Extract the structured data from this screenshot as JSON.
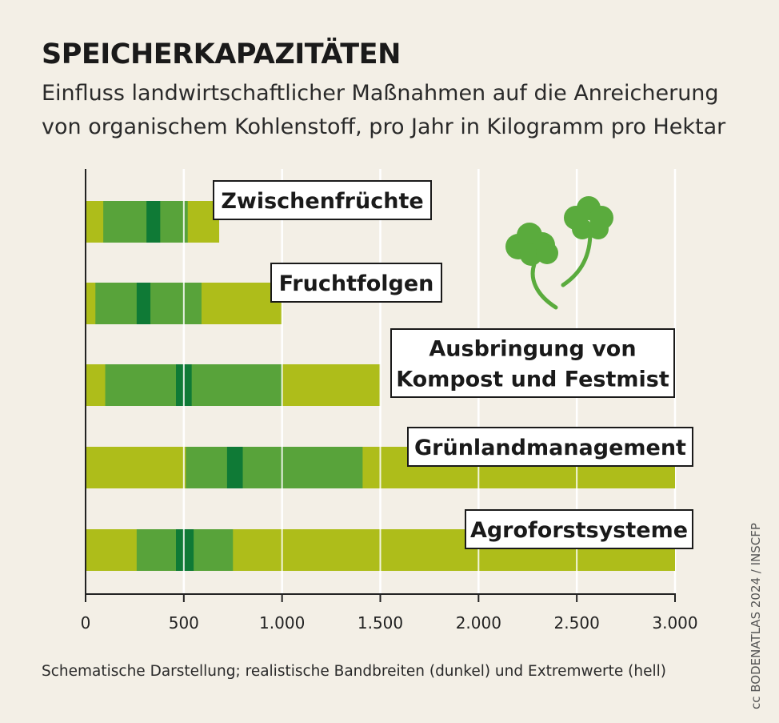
{
  "header": {
    "title": "SPEICHERKAPAZITÄTEN",
    "subtitle_line1": "Einfluss landwirtschaftlicher Maßnahmen auf die Anreicherung",
    "subtitle_line2": "von organischem Kohlenstoff, pro Jahr in Kilogramm pro Hektar"
  },
  "footnote": "Schematische Darstellung; realistische Bandbreiten (dunkel) und Extremwerte (hell)",
  "credit": "cc BODENATLAS 2024 / INSCFP",
  "colors": {
    "extreme": "#aebd1a",
    "range": "#58a33a",
    "core": "#0f7a36",
    "axis": "#222222",
    "grid": "#ffffff",
    "clover": "#5aab3d"
  },
  "chart_data": {
    "type": "bar",
    "orientation": "horizontal",
    "title": "SPEICHERKAPAZITÄTEN",
    "unit": "kg organischer Kohlenstoff pro Hektar und Jahr",
    "xlim": [
      0,
      3000
    ],
    "xticks": [
      0,
      500,
      1000,
      1500,
      2000,
      2500,
      3000
    ],
    "xtick_labels": [
      "0",
      "500",
      "1.000",
      "1.500",
      "2.000",
      "2.500",
      "3.000"
    ],
    "grid": true,
    "categories": [
      "Zwischenfrüchte",
      "Fruchtfolgen",
      "Ausbringung von Kompost und Festmist",
      "Grünlandmanagement",
      "Agroforstsysteme"
    ],
    "label_lines": [
      [
        "Zwischenfrüchte"
      ],
      [
        "Fruchtfolgen"
      ],
      [
        "Ausbringung von",
        "Kompost und Festmist"
      ],
      [
        "Grünlandmanagement"
      ],
      [
        "Agroforstsysteme"
      ]
    ],
    "extreme_range": [
      [
        0,
        680
      ],
      [
        0,
        1000
      ],
      [
        0,
        1500
      ],
      [
        0,
        3000
      ],
      [
        0,
        3000
      ]
    ],
    "realistic_range": [
      [
        90,
        520
      ],
      [
        50,
        590
      ],
      [
        100,
        1000
      ],
      [
        510,
        1410
      ],
      [
        260,
        750
      ]
    ],
    "core_range": [
      [
        310,
        380
      ],
      [
        260,
        330
      ],
      [
        460,
        540
      ],
      [
        720,
        800
      ],
      [
        460,
        550
      ]
    ]
  }
}
